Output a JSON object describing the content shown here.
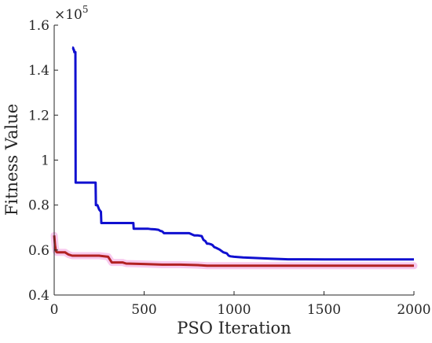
{
  "chart_data": {
    "type": "line",
    "title": "",
    "xlabel": "PSO Iteration",
    "ylabel": "Fitness Value",
    "y_scale_label": "×10",
    "y_scale_exponent": "5",
    "xlim": [
      0,
      2000
    ],
    "ylim": [
      0.4,
      1.6
    ],
    "xticks": [
      0,
      500,
      1000,
      1500,
      2000
    ],
    "xtick_labels": [
      "0",
      "500",
      "1000",
      "1500",
      "2000"
    ],
    "yticks": [
      0.4,
      0.6,
      0.8,
      1.0,
      1.2,
      1.4,
      1.6
    ],
    "ytick_labels": [
      "0.4",
      "0.6",
      "0.8",
      "1",
      "1.2",
      "1.4",
      "1.6"
    ],
    "grid": false,
    "series": [
      {
        "color": "#1010d0",
        "band_color": "",
        "x": [
          100,
          105,
          108,
          110,
          112,
          114,
          116,
          118,
          119,
          120,
          230,
          232,
          236,
          240,
          250,
          260,
          262,
          265,
          270,
          275,
          280,
          440,
          442,
          450,
          460,
          480,
          500,
          520,
          540,
          560,
          580,
          590,
          600,
          605,
          610,
          650,
          700,
          750,
          760,
          770,
          780,
          800,
          820,
          830,
          840,
          850,
          860,
          870,
          880,
          890,
          900,
          920,
          940,
          960,
          970,
          980,
          1000,
          1050,
          1100,
          1200,
          1300,
          1400,
          1500,
          1700,
          1900,
          2000
        ],
        "y": [
          1.5,
          1.5,
          1.49,
          1.49,
          1.48,
          1.48,
          1.48,
          1.48,
          0.9,
          0.9,
          0.9,
          0.8,
          0.8,
          0.8,
          0.78,
          0.77,
          0.72,
          0.72,
          0.72,
          0.72,
          0.72,
          0.72,
          0.695,
          0.695,
          0.695,
          0.695,
          0.695,
          0.695,
          0.693,
          0.692,
          0.69,
          0.685,
          0.683,
          0.68,
          0.675,
          0.675,
          0.675,
          0.675,
          0.672,
          0.668,
          0.665,
          0.665,
          0.662,
          0.645,
          0.64,
          0.628,
          0.628,
          0.626,
          0.622,
          0.613,
          0.61,
          0.602,
          0.59,
          0.585,
          0.575,
          0.572,
          0.57,
          0.567,
          0.565,
          0.562,
          0.559,
          0.559,
          0.558,
          0.558,
          0.558,
          0.558
        ]
      },
      {
        "color": "#b22222",
        "band_color": "#f5b8e8",
        "x": [
          0,
          5,
          10,
          15,
          20,
          40,
          60,
          80,
          100,
          120,
          150,
          200,
          250,
          300,
          320,
          322,
          340,
          360,
          380,
          400,
          500,
          600,
          700,
          800,
          850,
          900,
          1000,
          1200,
          1500,
          1800,
          2000
        ],
        "y": [
          0.665,
          0.62,
          0.595,
          0.59,
          0.59,
          0.59,
          0.59,
          0.58,
          0.575,
          0.575,
          0.575,
          0.575,
          0.575,
          0.57,
          0.545,
          0.545,
          0.545,
          0.545,
          0.545,
          0.54,
          0.538,
          0.535,
          0.535,
          0.533,
          0.53,
          0.53,
          0.53,
          0.53,
          0.53,
          0.53,
          0.53
        ]
      }
    ]
  }
}
